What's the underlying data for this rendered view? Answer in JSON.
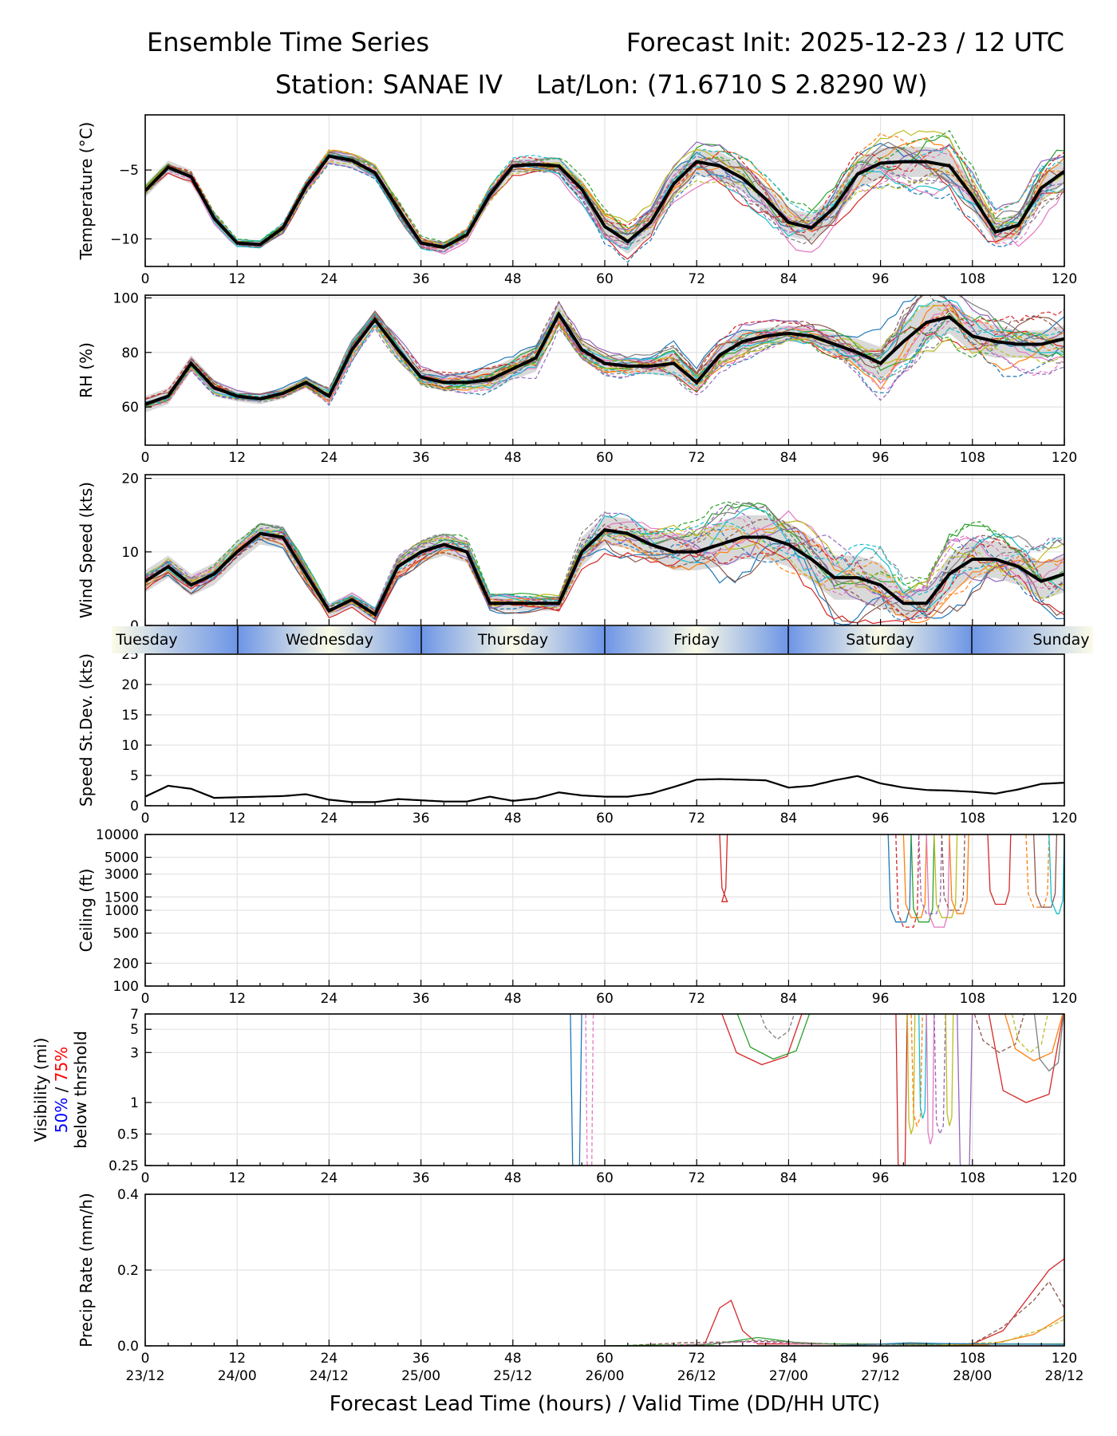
{
  "header": {
    "left_title": "Ensemble Time Series",
    "right_title": "Forecast Init: 2025-12-23 / 12 UTC",
    "station": "Station: SANAE IV",
    "latlon": "Lat/Lon: (71.6710 S 2.8290 W)"
  },
  "x_axis": {
    "label": "Forecast Lead Time (hours) / Valid Time (DD/HH UTC)",
    "lead_hours": [
      "0",
      "12",
      "24",
      "36",
      "48",
      "60",
      "72",
      "84",
      "96",
      "108",
      "120"
    ],
    "valid_times": [
      "23/12",
      "24/00",
      "24/12",
      "25/00",
      "25/12",
      "26/00",
      "26/12",
      "27/00",
      "27/12",
      "28/00",
      "28/12"
    ]
  },
  "day_strip": {
    "days": [
      "Tuesday",
      "Wednesday",
      "Thursday",
      "Friday",
      "Saturday",
      "Sunday"
    ]
  },
  "colors": {
    "mean": "#000000",
    "spread": "#cfcfcf",
    "legend_50": "#0000ff",
    "legend_75": "#ff0000",
    "members": [
      "#1f77b4",
      "#ff7f0e",
      "#2ca02c",
      "#d62728",
      "#9467bd",
      "#8c564b",
      "#e377c2",
      "#7f7f7f",
      "#bcbd22",
      "#17becf"
    ]
  },
  "chart_data": [
    {
      "type": "line",
      "id": "temperature",
      "ylabel": "Temperature (°C)",
      "ylim": [
        -12,
        -1
      ],
      "yticks": [
        -10,
        -5
      ],
      "ytick_labels": [
        "−10",
        "−5"
      ],
      "mean": {
        "x": [
          0,
          3,
          6,
          9,
          12,
          15,
          18,
          21,
          24,
          27,
          30,
          33,
          36,
          39,
          42,
          45,
          48,
          51,
          54,
          57,
          60,
          63,
          66,
          69,
          72,
          75,
          78,
          81,
          84,
          87,
          90,
          93,
          96,
          99,
          102,
          105,
          108,
          111,
          114,
          117,
          120
        ],
        "y": [
          -6.5,
          -4.8,
          -5.5,
          -8.5,
          -10.3,
          -10.4,
          -9.2,
          -6.2,
          -4.0,
          -4.3,
          -5.2,
          -7.8,
          -10.3,
          -10.6,
          -9.7,
          -6.8,
          -4.7,
          -4.6,
          -4.7,
          -6.4,
          -9.1,
          -10.2,
          -8.8,
          -6.0,
          -4.4,
          -4.7,
          -5.6,
          -7.1,
          -8.8,
          -9.2,
          -7.7,
          -5.3,
          -4.5,
          -4.4,
          -4.4,
          -4.7,
          -6.9,
          -9.5,
          -9.0,
          -6.3,
          -5.1
        ]
      },
      "band": {
        "lower": [
          -7.0,
          -5.3,
          -6.0,
          -9.0,
          -10.6,
          -10.7,
          -9.6,
          -6.7,
          -4.5,
          -4.8,
          -5.7,
          -8.3,
          -10.7,
          -11.0,
          -10.1,
          -7.3,
          -5.2,
          -5.1,
          -5.3,
          -7.1,
          -9.9,
          -11.1,
          -9.7,
          -6.9,
          -5.4,
          -5.7,
          -6.6,
          -8.1,
          -9.8,
          -10.2,
          -8.7,
          -6.4,
          -5.6,
          -5.5,
          -5.5,
          -5.8,
          -7.9,
          -10.3,
          -9.9,
          -7.3,
          -6.0
        ],
        "upper": [
          -6.0,
          -4.3,
          -5.0,
          -8.0,
          -10.0,
          -10.1,
          -8.8,
          -5.7,
          -3.5,
          -3.8,
          -4.7,
          -7.3,
          -9.9,
          -10.2,
          -9.3,
          -6.3,
          -4.2,
          -4.1,
          -4.1,
          -5.7,
          -8.3,
          -9.3,
          -7.9,
          -5.1,
          -3.4,
          -3.7,
          -4.6,
          -6.1,
          -7.8,
          -8.2,
          -6.7,
          -4.2,
          -3.4,
          -3.3,
          -3.3,
          -3.6,
          -5.9,
          -8.7,
          -8.1,
          -5.3,
          -4.2
        ]
      },
      "members_shown": 20
    },
    {
      "type": "line",
      "id": "rh",
      "ylabel": "RH (%)",
      "ylim": [
        46,
        101
      ],
      "yticks": [
        60,
        80,
        100
      ],
      "ytick_labels": [
        "60",
        "80",
        "100"
      ],
      "mean": {
        "x": [
          0,
          3,
          6,
          9,
          12,
          15,
          18,
          21,
          24,
          27,
          30,
          33,
          36,
          39,
          42,
          45,
          48,
          51,
          54,
          57,
          60,
          63,
          66,
          69,
          72,
          75,
          78,
          81,
          84,
          87,
          90,
          93,
          96,
          99,
          102,
          105,
          108,
          111,
          114,
          117,
          120
        ],
        "y": [
          61,
          64,
          76,
          67,
          64,
          63,
          65,
          69,
          64,
          81,
          92,
          81,
          71,
          69,
          69,
          70,
          74,
          78,
          94,
          81,
          76,
          75,
          75,
          76,
          69,
          79,
          84,
          86,
          87,
          86,
          83,
          80,
          76,
          84,
          91,
          93,
          86,
          84,
          83,
          83,
          85
        ]
      },
      "band": {
        "lower": [
          58,
          61,
          73,
          64,
          62,
          61,
          63,
          67,
          61,
          77,
          89,
          77,
          68,
          66,
          66,
          66,
          70,
          73,
          90,
          78,
          73,
          72,
          72,
          71,
          66,
          75,
          80,
          83,
          84,
          83,
          79,
          75,
          70,
          77,
          84,
          87,
          80,
          78,
          78,
          78,
          80
        ],
        "upper": [
          64,
          67,
          79,
          70,
          66,
          65,
          67,
          71,
          67,
          85,
          95,
          85,
          74,
          72,
          72,
          74,
          78,
          83,
          98,
          84,
          79,
          78,
          78,
          81,
          72,
          83,
          88,
          89,
          90,
          89,
          87,
          85,
          82,
          91,
          98,
          99,
          92,
          90,
          88,
          88,
          90
        ]
      },
      "members_shown": 20
    },
    {
      "type": "line",
      "id": "wind_speed",
      "ylabel": "Wind Speed (kts)",
      "ylim": [
        0,
        20.5
      ],
      "yticks": [
        0,
        10,
        20
      ],
      "ytick_labels": [
        "0",
        "10",
        "20"
      ],
      "mean": {
        "x": [
          0,
          3,
          6,
          9,
          12,
          15,
          18,
          21,
          24,
          27,
          30,
          33,
          36,
          39,
          42,
          45,
          48,
          51,
          54,
          57,
          60,
          63,
          66,
          69,
          72,
          75,
          78,
          81,
          84,
          87,
          90,
          93,
          96,
          99,
          102,
          105,
          108,
          111,
          114,
          117,
          120
        ],
        "y": [
          6,
          8,
          5.5,
          7,
          10,
          12.5,
          12,
          7,
          2,
          3.5,
          1.5,
          8,
          10,
          11,
          10,
          3,
          3,
          3,
          3,
          10,
          13,
          12.5,
          11,
          10,
          10,
          11,
          12,
          12,
          11,
          9,
          6.5,
          6.5,
          5.5,
          3,
          3,
          7,
          9,
          9,
          8,
          6,
          7
        ]
      },
      "band": {
        "lower": [
          4.5,
          6.5,
          4,
          5.5,
          8.5,
          11,
          10.5,
          5.5,
          1,
          2.5,
          0.5,
          6.5,
          8.5,
          9.5,
          8.5,
          2,
          2,
          2,
          2,
          8,
          11,
          10.5,
          9,
          7.5,
          7.5,
          8,
          9,
          9,
          8,
          6,
          3.5,
          3.5,
          2.5,
          1,
          1,
          4.5,
          6.5,
          6.5,
          5.5,
          3.5,
          4.5
        ],
        "upper": [
          7.5,
          9.5,
          7,
          8.5,
          11.5,
          14,
          13.5,
          8.5,
          3,
          4.5,
          2.5,
          9.5,
          11.5,
          12.5,
          11.5,
          4,
          4,
          4,
          4,
          12,
          15,
          14.5,
          13,
          12.5,
          12.5,
          14,
          15,
          15,
          14,
          12,
          9.5,
          9.5,
          8.5,
          5,
          5,
          9.5,
          11.5,
          11.5,
          10.5,
          8.5,
          9.5
        ]
      },
      "members_shown": 20
    },
    {
      "type": "line",
      "id": "speed_stdev",
      "ylabel": "Speed St.Dev. (kts)",
      "ylim": [
        0,
        25
      ],
      "yticks": [
        0,
        5,
        10,
        15,
        20,
        25
      ],
      "ytick_labels": [
        "0",
        "5",
        "10",
        "15",
        "20",
        "25"
      ],
      "mean": {
        "x": [
          0,
          3,
          6,
          9,
          12,
          15,
          18,
          21,
          24,
          27,
          30,
          33,
          36,
          39,
          42,
          45,
          48,
          51,
          54,
          57,
          60,
          63,
          66,
          69,
          72,
          75,
          78,
          81,
          84,
          87,
          90,
          93,
          96,
          99,
          102,
          105,
          108,
          111,
          114,
          117,
          120
        ],
        "y": [
          1.5,
          3.3,
          2.8,
          1.3,
          1.4,
          1.5,
          1.6,
          1.9,
          1.0,
          0.6,
          0.6,
          1.1,
          0.9,
          0.7,
          0.7,
          1.5,
          0.8,
          1.2,
          2.2,
          1.7,
          1.5,
          1.5,
          2.0,
          3.1,
          4.3,
          4.4,
          4.3,
          4.2,
          3.0,
          3.3,
          4.2,
          4.9,
          3.7,
          3.0,
          2.6,
          2.5,
          2.3,
          2.0,
          2.7,
          3.6,
          3.8
        ]
      },
      "members_shown": 0
    },
    {
      "type": "line",
      "id": "ceiling",
      "ylabel": "Ceiling (ft)",
      "yscale": "log",
      "ylim": [
        100,
        10000
      ],
      "yticks": [
        100,
        200,
        500,
        1000,
        1500,
        3000,
        5000,
        10000
      ],
      "ytick_labels": [
        "100",
        "200",
        "500",
        "1000",
        "1500",
        "3000",
        "5000",
        "10000"
      ],
      "members_shown": 14
    },
    {
      "type": "line",
      "id": "visibility",
      "ylabel": "Visibility (mi)",
      "ylabel_line2_a": "50%",
      "ylabel_line2_sep": " / ",
      "ylabel_line2_b": "75%",
      "ylabel_line3": "below thrshold",
      "yscale": "log",
      "ylim": [
        0.25,
        7
      ],
      "yticks": [
        0.25,
        0.5,
        1,
        3,
        5,
        7
      ],
      "ytick_labels": [
        "0.25",
        "0.5",
        "1",
        "3",
        "5",
        "7"
      ],
      "members_shown": 18
    },
    {
      "type": "line",
      "id": "precip_rate",
      "ylabel": "Precip Rate (mm/h)",
      "ylim": [
        0,
        0.4
      ],
      "yticks": [
        0,
        0.2,
        0.4
      ],
      "ytick_labels": [
        "0.0",
        "0.2",
        "0.4"
      ],
      "members_shown": 8
    }
  ]
}
